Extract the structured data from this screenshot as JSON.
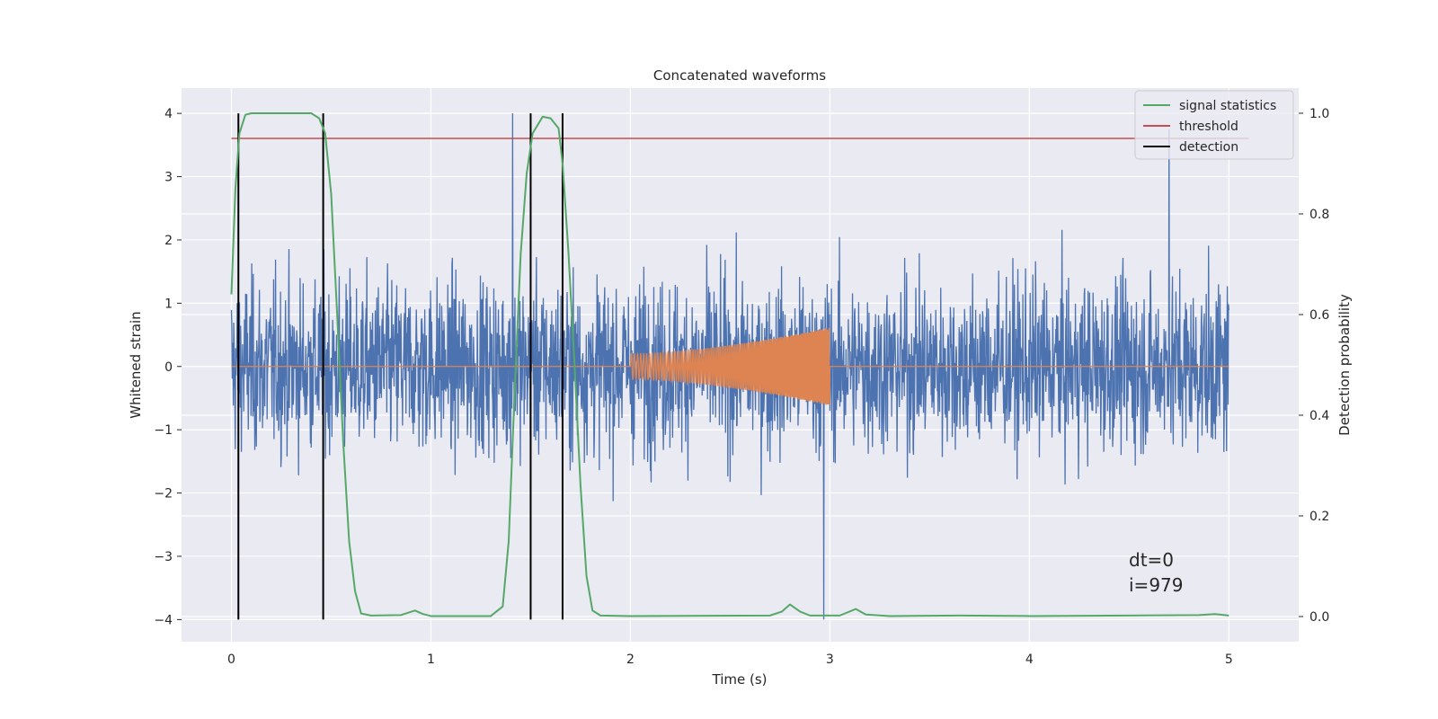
{
  "chart_data": {
    "type": "line",
    "title": "Concatenated waveforms",
    "xlabel": "Time (s)",
    "ylabel": "Whitened strain",
    "y2label": "Detection probability",
    "xlim": [
      -0.25,
      5.35
    ],
    "ylim": [
      -4.35,
      4.4
    ],
    "y2lim": [
      -0.05,
      1.05
    ],
    "x_ticks": [
      0,
      1,
      2,
      3,
      4,
      5
    ],
    "y_ticks": [
      -4,
      -3,
      -2,
      -1,
      0,
      1,
      2,
      3,
      4
    ],
    "y2_ticks": [
      0.0,
      0.2,
      0.4,
      0.6,
      0.8,
      1.0
    ],
    "x_tick_labels": [
      "0",
      "1",
      "2",
      "3",
      "4",
      "5"
    ],
    "y_tick_labels": [
      "−4",
      "−3",
      "−2",
      "−1",
      "0",
      "1",
      "2",
      "3",
      "4"
    ],
    "y2_tick_labels": [
      "0.0",
      "0.2",
      "0.4",
      "0.6",
      "0.8",
      "1.0"
    ],
    "grid": true,
    "legend_position": "top-right",
    "series": [
      {
        "name": "",
        "axis": "left",
        "color": "#4c72b0",
        "description_kind": "noise",
        "x_range": [
          0,
          5
        ],
        "amplitude_typical": 1.0,
        "extremes": [
          [
            1.41,
            4.0
          ],
          [
            2.97,
            -4.0
          ],
          [
            4.7,
            3.75
          ]
        ]
      },
      {
        "name": "",
        "axis": "left",
        "color": "#dd8452",
        "description_kind": "chirp",
        "x_range": [
          2.0,
          3.0
        ],
        "amplitude_start": 0.2,
        "amplitude_end": 0.62
      },
      {
        "name": "signal statistics",
        "axis": "right",
        "color": "#55a868",
        "points": [
          [
            0,
            0.64
          ],
          [
            0.02,
            0.85
          ],
          [
            0.04,
            0.96
          ],
          [
            0.07,
            0.997
          ],
          [
            0.1,
            1.0
          ],
          [
            0.4,
            1.0
          ],
          [
            0.44,
            0.99
          ],
          [
            0.47,
            0.96
          ],
          [
            0.5,
            0.84
          ],
          [
            0.53,
            0.6
          ],
          [
            0.56,
            0.35
          ],
          [
            0.59,
            0.15
          ],
          [
            0.62,
            0.05
          ],
          [
            0.65,
            0.006
          ],
          [
            0.7,
            0.002
          ],
          [
            0.85,
            0.003
          ],
          [
            0.92,
            0.012
          ],
          [
            0.96,
            0.005
          ],
          [
            1.0,
            0.001
          ],
          [
            1.3,
            0.001
          ],
          [
            1.36,
            0.02
          ],
          [
            1.39,
            0.15
          ],
          [
            1.42,
            0.45
          ],
          [
            1.45,
            0.72
          ],
          [
            1.48,
            0.88
          ],
          [
            1.51,
            0.96
          ],
          [
            1.56,
            0.993
          ],
          [
            1.6,
            0.99
          ],
          [
            1.64,
            0.97
          ],
          [
            1.66,
            0.9
          ],
          [
            1.69,
            0.72
          ],
          [
            1.72,
            0.5
          ],
          [
            1.75,
            0.26
          ],
          [
            1.78,
            0.08
          ],
          [
            1.81,
            0.012
          ],
          [
            1.85,
            0.002
          ],
          [
            2.0,
            0.001
          ],
          [
            2.7,
            0.002
          ],
          [
            2.76,
            0.01
          ],
          [
            2.8,
            0.024
          ],
          [
            2.85,
            0.01
          ],
          [
            2.9,
            0.002
          ],
          [
            3.05,
            0.002
          ],
          [
            3.13,
            0.015
          ],
          [
            3.18,
            0.004
          ],
          [
            3.3,
            0.001
          ],
          [
            3.65,
            0.002
          ],
          [
            4.0,
            0.001
          ],
          [
            4.5,
            0.002
          ],
          [
            4.85,
            0.003
          ],
          [
            4.93,
            0.005
          ],
          [
            5.0,
            0.002
          ]
        ]
      },
      {
        "name": "threshold",
        "axis": "right",
        "color": "#c44e52",
        "points": [
          [
            0,
            0.95
          ],
          [
            5.1,
            0.95
          ]
        ]
      },
      {
        "name": "detection",
        "axis": "left",
        "color": "#000000",
        "kind": "vlines",
        "x": [
          0.035,
          0.46,
          1.5,
          1.66
        ],
        "ymin": -4,
        "ymax": 4
      }
    ],
    "annotations": [
      "dt=0",
      "i=979"
    ]
  },
  "colors": {
    "plot_background": "#eaeaf2",
    "grid": "#ffffff",
    "text": "#262626"
  }
}
